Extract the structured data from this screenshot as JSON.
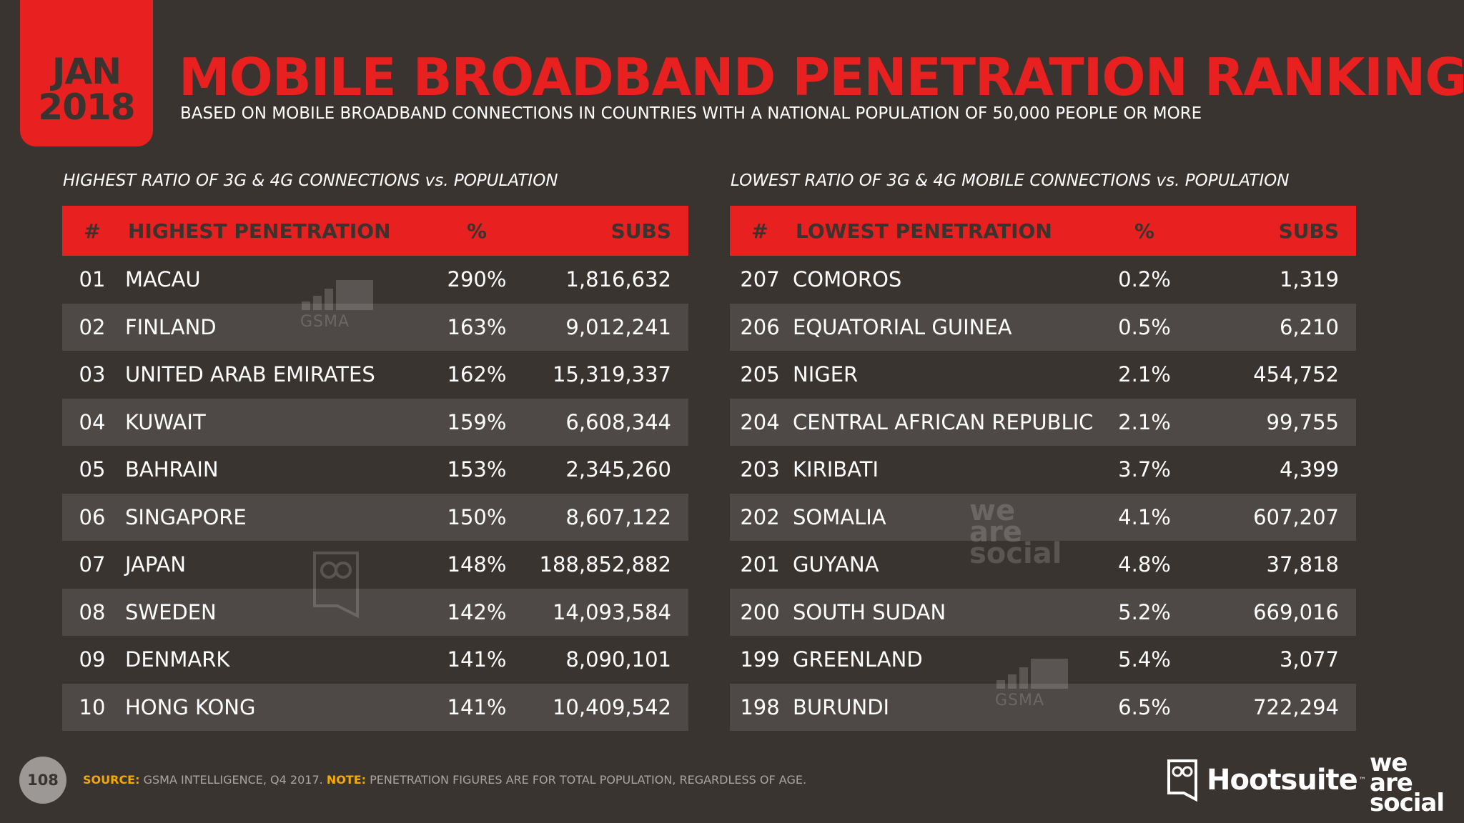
{
  "badge": {
    "month": "JAN",
    "year": "2018"
  },
  "title": "MOBILE BROADBAND PENETRATION RANKINGS",
  "subtitle": "BASED ON MOBILE BROADBAND CONNECTIONS IN COUNTRIES WITH A NATIONAL POPULATION OF 50,000 PEOPLE OR MORE",
  "left_section": {
    "heading": "HIGHEST RATIO OF 3G & 4G CONNECTIONS vs. POPULATION",
    "header": {
      "rank": "#",
      "name": "HIGHEST PENETRATION",
      "pct": "%",
      "subs": "SUBS"
    },
    "rows": [
      {
        "rank": "01",
        "name": "MACAU",
        "pct": "290%",
        "subs": "1,816,632"
      },
      {
        "rank": "02",
        "name": "FINLAND",
        "pct": "163%",
        "subs": "9,012,241"
      },
      {
        "rank": "03",
        "name": "UNITED ARAB EMIRATES",
        "pct": "162%",
        "subs": "15,319,337"
      },
      {
        "rank": "04",
        "name": "KUWAIT",
        "pct": "159%",
        "subs": "6,608,344"
      },
      {
        "rank": "05",
        "name": "BAHRAIN",
        "pct": "153%",
        "subs": "2,345,260"
      },
      {
        "rank": "06",
        "name": "SINGAPORE",
        "pct": "150%",
        "subs": "8,607,122"
      },
      {
        "rank": "07",
        "name": "JAPAN",
        "pct": "148%",
        "subs": "188,852,882"
      },
      {
        "rank": "08",
        "name": "SWEDEN",
        "pct": "142%",
        "subs": "14,093,584"
      },
      {
        "rank": "09",
        "name": "DENMARK",
        "pct": "141%",
        "subs": "8,090,101"
      },
      {
        "rank": "10",
        "name": "HONG KONG",
        "pct": "141%",
        "subs": "10,409,542"
      }
    ]
  },
  "right_section": {
    "heading": "LOWEST RATIO OF 3G & 4G MOBILE CONNECTIONS vs. POPULATION",
    "header": {
      "rank": "#",
      "name": "LOWEST PENETRATION",
      "pct": "%",
      "subs": "SUBS"
    },
    "rows": [
      {
        "rank": "207",
        "name": "COMOROS",
        "pct": "0.2%",
        "subs": "1,319"
      },
      {
        "rank": "206",
        "name": "EQUATORIAL GUINEA",
        "pct": "0.5%",
        "subs": "6,210"
      },
      {
        "rank": "205",
        "name": "NIGER",
        "pct": "2.1%",
        "subs": "454,752"
      },
      {
        "rank": "204",
        "name": "CENTRAL AFRICAN REPUBLIC",
        "pct": "2.1%",
        "subs": "99,755"
      },
      {
        "rank": "203",
        "name": "KIRIBATI",
        "pct": "3.7%",
        "subs": "4,399"
      },
      {
        "rank": "202",
        "name": "SOMALIA",
        "pct": "4.1%",
        "subs": "607,207"
      },
      {
        "rank": "201",
        "name": "GUYANA",
        "pct": "4.8%",
        "subs": "37,818"
      },
      {
        "rank": "200",
        "name": "SOUTH SUDAN",
        "pct": "5.2%",
        "subs": "669,016"
      },
      {
        "rank": "199",
        "name": "GREENLAND",
        "pct": "5.4%",
        "subs": "3,077"
      },
      {
        "rank": "198",
        "name": "BURUNDI",
        "pct": "6.5%",
        "subs": "722,294"
      }
    ]
  },
  "watermarks": {
    "gsma": "GSMA",
    "we": "we",
    "are": "are",
    "social": "social"
  },
  "footer": {
    "page_number": "108",
    "source_label": "SOURCE:",
    "source_text": "GSMA INTELLIGENCE, Q4 2017.",
    "note_label": "NOTE:",
    "note_text": "PENETRATION FIGURES ARE FOR TOTAL POPULATION, REGARDLESS OF AGE."
  },
  "logos": {
    "hootsuite": "Hootsuite",
    "tm": "™",
    "we": "we",
    "are": "are",
    "social": "social"
  },
  "colors": {
    "background": "#3a3431",
    "accent": "#e8201f",
    "row_alt": "#4e4946",
    "footer_label": "#f5a800"
  }
}
